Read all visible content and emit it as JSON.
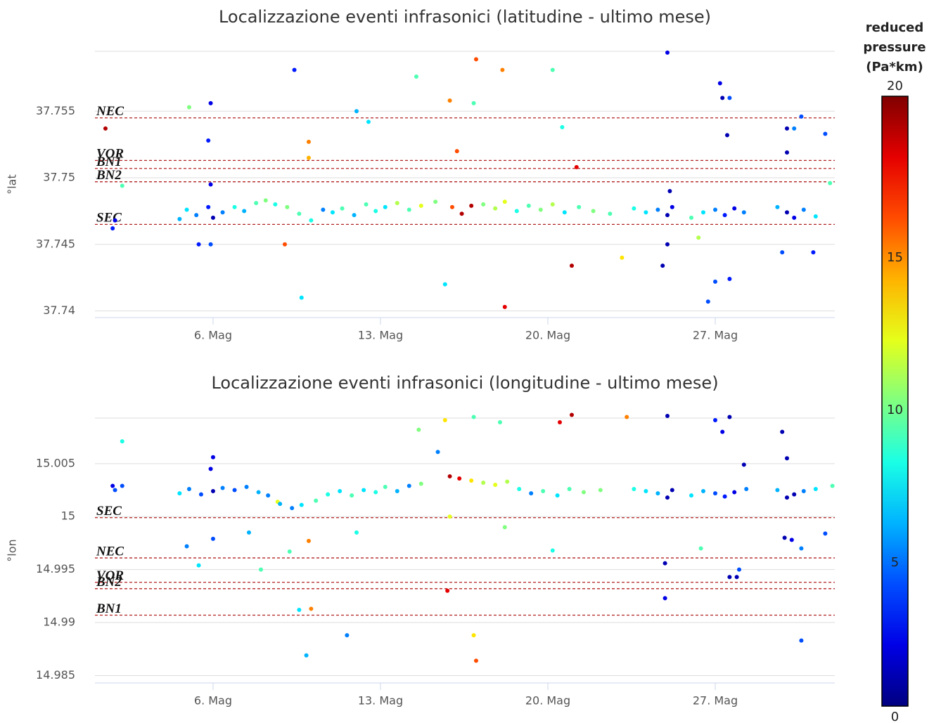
{
  "chart_data": [
    {
      "type": "scatter",
      "title": "Localizzazione eventi infrasonici (latitudine - ultimo mese)",
      "y_label": "°lat",
      "xlim": [
        1.06,
        32.0
      ],
      "xticks": [
        {
          "value": 6,
          "label": "6. Mag"
        },
        {
          "value": 13,
          "label": "13. Mag"
        },
        {
          "value": 20,
          "label": "20. Mag"
        },
        {
          "value": 27,
          "label": "27. Mag"
        }
      ],
      "ylim": [
        37.7395,
        37.7595
      ],
      "yticks": [
        37.755,
        37.75,
        37.745,
        37.74
      ],
      "grid": true,
      "reference_lines": [
        {
          "label": "NEC",
          "value": 37.7545
        },
        {
          "label": "VOR",
          "value": 37.7513
        },
        {
          "label": "BN1",
          "value": 37.7507
        },
        {
          "label": "BN2",
          "value": 37.7497
        },
        {
          "label": "SEC",
          "value": 37.7465
        }
      ],
      "series": [
        {
          "x": [
            1.5,
            1.8,
            1.9,
            2.2,
            5.0,
            5.9,
            5.8,
            5.9,
            5.4,
            5.9,
            9.4,
            9.0,
            9.7,
            10.0,
            10.0,
            12.0,
            12.5,
            14.5,
            15.7,
            15.9,
            16.2,
            17.0,
            16.9,
            18.1,
            18.2,
            20.2,
            20.6,
            21.2,
            21.0,
            23.1,
            25.0,
            24.8,
            25.0,
            25.1,
            26.3,
            27.2,
            27.3,
            27.5,
            27.6,
            27.0,
            27.6,
            26.7,
            30.0,
            30.3,
            30.6,
            31.6,
            31.8,
            29.8,
            31.1,
            30.0,
            4.6,
            4.9,
            5.3,
            5.8,
            6.0,
            6.4,
            6.9,
            7.3,
            7.8,
            8.2,
            8.6,
            9.1,
            9.6,
            10.1,
            10.6,
            11.0,
            11.4,
            11.9,
            12.4,
            12.8,
            13.2,
            13.7,
            14.2,
            14.7,
            15.3,
            16.0,
            16.4,
            16.8,
            17.3,
            17.8,
            18.2,
            18.7,
            19.2,
            19.7,
            20.2,
            20.7,
            21.3,
            21.9,
            22.6,
            23.6,
            24.1,
            24.6,
            25.0,
            25.2,
            26.0,
            26.5,
            27.0,
            27.4,
            27.8,
            28.2,
            29.6,
            30.0,
            30.3,
            30.7,
            31.2
          ],
          "values": [
            37.7537,
            37.7462,
            37.7468,
            37.7494,
            37.7553,
            37.7556,
            37.7528,
            37.7495,
            37.745,
            37.745,
            37.7581,
            37.745,
            37.741,
            37.7527,
            37.7515,
            37.755,
            37.7542,
            37.7576,
            37.742,
            37.7558,
            37.752,
            37.7589,
            37.7556,
            37.7581,
            37.7403,
            37.7581,
            37.7538,
            37.7508,
            37.7434,
            37.744,
            37.7594,
            37.7434,
            37.745,
            37.749,
            37.7455,
            37.7571,
            37.756,
            37.7532,
            37.756,
            37.7422,
            37.7424,
            37.7407,
            37.7537,
            37.7537,
            37.7546,
            37.7533,
            37.7496,
            37.7444,
            37.7444,
            37.7519,
            37.7469,
            37.7476,
            37.7472,
            37.7478,
            37.747,
            37.7474,
            37.7478,
            37.7475,
            37.7481,
            37.7483,
            37.748,
            37.7478,
            37.7473,
            37.7468,
            37.7476,
            37.7474,
            37.7477,
            37.7472,
            37.748,
            37.7475,
            37.7478,
            37.7481,
            37.7476,
            37.7479,
            37.7482,
            37.7478,
            37.7473,
            37.7479,
            37.748,
            37.7477,
            37.7482,
            37.7475,
            37.7479,
            37.7476,
            37.748,
            37.7474,
            37.7478,
            37.7475,
            37.7473,
            37.7477,
            37.7474,
            37.7476,
            37.7472,
            37.7478,
            37.747,
            37.7474,
            37.7476,
            37.7472,
            37.7477,
            37.7474,
            37.7478,
            37.7474,
            37.747,
            37.7476,
            37.7471
          ],
          "pressure": [
            19,
            3,
            2,
            9,
            10,
            2,
            3,
            2,
            3,
            4,
            3,
            16,
            7,
            15,
            14,
            6,
            7,
            9,
            7,
            15,
            16,
            16,
            9,
            15,
            18,
            9,
            8,
            18,
            19,
            13,
            2,
            1,
            1,
            1,
            11,
            2,
            1,
            1,
            4,
            4,
            3,
            4,
            1,
            5,
            4,
            4,
            9,
            4,
            3,
            1,
            6,
            7,
            5,
            3,
            1,
            5,
            8,
            6,
            9,
            10,
            8,
            10,
            9,
            8,
            5,
            7,
            9,
            6,
            9,
            8,
            7,
            11,
            9,
            12,
            10,
            16,
            19,
            19,
            10,
            11,
            12,
            8,
            9,
            10,
            11,
            7,
            9,
            10,
            9,
            8,
            7,
            5,
            1,
            2,
            9,
            7,
            5,
            3,
            2,
            5,
            6,
            1,
            2,
            5,
            7
          ]
        }
      ]
    },
    {
      "type": "scatter",
      "title": "Localizzazione eventi infrasonici (longitudine - ultimo mese)",
      "y_label": "°lon",
      "xlim": [
        1.06,
        32.0
      ],
      "xticks": [
        {
          "value": 6,
          "label": "6. Mag"
        },
        {
          "value": 13,
          "label": "13. Mag"
        },
        {
          "value": 20,
          "label": "20. Mag"
        },
        {
          "value": 27,
          "label": "27. Mag"
        }
      ],
      "ylim": [
        14.9843,
        15.0093
      ],
      "yticks": [
        15.005,
        15,
        14.995,
        14.99,
        14.985
      ],
      "grid": true,
      "reference_lines": [
        {
          "label": "SEC",
          "value": 14.9999
        },
        {
          "label": "NEC",
          "value": 14.9961
        },
        {
          "label": "VOR",
          "value": 14.9938
        },
        {
          "label": "BN2",
          "value": 14.9932
        },
        {
          "label": "BN1",
          "value": 14.9907
        }
      ],
      "series": [
        {
          "x": [
            2.2,
            1.9,
            1.8,
            2.2,
            4.9,
            5.4,
            6.0,
            5.9,
            6.0,
            7.5,
            8.0,
            8.7,
            9.2,
            9.6,
            9.9,
            10.1,
            10.0,
            11.6,
            12.0,
            14.6,
            15.4,
            15.7,
            15.8,
            15.9,
            16.9,
            16.9,
            17.0,
            18.0,
            18.2,
            20.2,
            20.5,
            21.0,
            23.3,
            25.0,
            24.9,
            24.9,
            26.4,
            27.0,
            27.3,
            27.6,
            27.6,
            27.9,
            28.0,
            28.2,
            29.8,
            29.9,
            30.2,
            30.6,
            30.6,
            31.6,
            31.9,
            30.0,
            4.6,
            5.0,
            5.5,
            6.0,
            6.4,
            6.9,
            7.4,
            7.9,
            8.3,
            8.8,
            9.3,
            9.7,
            10.3,
            10.8,
            11.3,
            11.8,
            12.3,
            12.8,
            13.2,
            13.7,
            14.2,
            14.7,
            15.9,
            16.3,
            16.8,
            17.3,
            17.8,
            18.3,
            18.8,
            19.3,
            19.8,
            20.4,
            20.9,
            21.5,
            22.2,
            23.6,
            24.1,
            24.6,
            25.0,
            25.2,
            26.0,
            26.5,
            27.0,
            27.4,
            27.8,
            28.3,
            29.6,
            30.0,
            30.3,
            30.7,
            31.2
          ],
          "values": [
            15.0071,
            15.0025,
            15.0029,
            15.0029,
            14.9972,
            14.9954,
            15.0056,
            15.0045,
            14.9979,
            14.9985,
            14.995,
            15.0014,
            14.9967,
            14.9912,
            14.9869,
            14.9913,
            14.9977,
            14.9888,
            14.9985,
            15.0082,
            15.0061,
            15.0091,
            14.993,
            15,
            15.0094,
            14.9888,
            14.9864,
            15.0089,
            14.999,
            14.9968,
            15.0089,
            15.0096,
            15.0094,
            15.0095,
            14.9956,
            14.9923,
            14.997,
            15.0091,
            15.008,
            15.0094,
            14.9943,
            14.9943,
            14.995,
            15.0049,
            15.008,
            14.998,
            14.9978,
            14.997,
            14.9883,
            14.9984,
            15.0029,
            15.0055,
            15.0022,
            15.0026,
            15.0021,
            15.0024,
            15.0027,
            15.0025,
            15.0028,
            15.0023,
            15.002,
            15.0012,
            15.0008,
            15.0011,
            15.0015,
            15.0021,
            15.0024,
            15.002,
            15.0025,
            15.0023,
            15.0028,
            15.0024,
            15.0029,
            15.0031,
            15.0038,
            15.0036,
            15.0034,
            15.0032,
            15.003,
            15.0033,
            15.0026,
            15.0022,
            15.0024,
            15.002,
            15.0026,
            15.0023,
            15.0025,
            15.0026,
            15.0024,
            15.0022,
            15.0018,
            15.0025,
            15.002,
            15.0024,
            15.0022,
            15.0019,
            15.0023,
            15.0026,
            15.0025,
            15.0018,
            15.0021,
            15.0024,
            15.0026
          ],
          "pressure": [
            8,
            4,
            2,
            4,
            5,
            7,
            2,
            2,
            4,
            6,
            9,
            12,
            9,
            7,
            6,
            15,
            15,
            5,
            8,
            10,
            5,
            13,
            18,
            12,
            9,
            13,
            16,
            9,
            10,
            8,
            18,
            19,
            15,
            1,
            1,
            2,
            9,
            3,
            2,
            1,
            1,
            1,
            4,
            1,
            1,
            1,
            2,
            5,
            4,
            4,
            9,
            1,
            7,
            5,
            4,
            1,
            5,
            4,
            5,
            6,
            5,
            6,
            5,
            7,
            9,
            8,
            7,
            9,
            7,
            8,
            9,
            6,
            5,
            10,
            19,
            18,
            13,
            11,
            12,
            11,
            8,
            5,
            9,
            7,
            9,
            10,
            10,
            8,
            7,
            6,
            1,
            1,
            7,
            6,
            4,
            3,
            2,
            5,
            6,
            1,
            1,
            5,
            7
          ]
        }
      ]
    }
  ],
  "colorbar": {
    "title_lines": [
      "reduced",
      "pressure",
      "(Pa*km)"
    ],
    "colormap": "jet",
    "clim": [
      0,
      20
    ],
    "ticks": [
      20,
      15,
      10,
      5,
      0
    ]
  }
}
